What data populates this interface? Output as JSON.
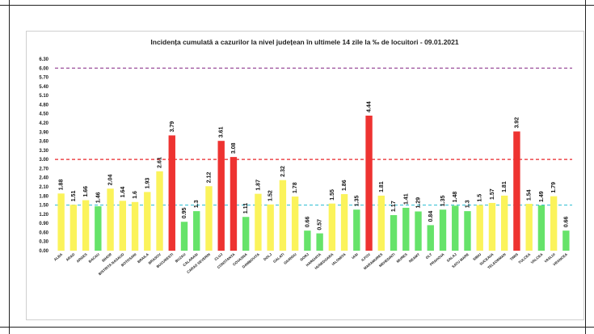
{
  "chart_data": {
    "type": "bar",
    "title": "Incidența cumulată a cazurilor la nivel județean în ultimele 14 zile la ‰ de locuitori - 09.01.2021",
    "xlabel": "",
    "ylabel": "",
    "ylim": [
      0,
      6.3
    ],
    "yticks": [
      "0.00",
      "0.30",
      "0.60",
      "0.90",
      "1.20",
      "1.50",
      "1.80",
      "2.10",
      "2.40",
      "2.70",
      "3.00",
      "3.30",
      "3.60",
      "3.90",
      "4.20",
      "4.50",
      "4.80",
      "5.10",
      "5.40",
      "5.70",
      "6.00",
      "6.30"
    ],
    "categories": [
      "ALBA",
      "ARAD",
      "ARGES",
      "BACAU",
      "BIHOR",
      "BISTRITA NASAUD",
      "BOTOSANI",
      "BRAILA",
      "BRASOV",
      "BUCURESTI",
      "BUZAU",
      "CALARASI",
      "CARAS SEVERIN",
      "CLUJ",
      "CONSTANTA",
      "COVASNA",
      "DAMBOVITA",
      "DOLJ",
      "GALATI",
      "GIURGIU",
      "GORJ",
      "HARGHITA",
      "HUNEDOARA",
      "IALOMITA",
      "IASI",
      "ILFOV",
      "MARAMURES",
      "MEHEDINTI",
      "MURES",
      "NEAMT",
      "OLT",
      "PRAHOVA",
      "SALAJ",
      "SATU MARE",
      "SIBIU",
      "SUCEAVA",
      "TELEORMAN",
      "TIMIS",
      "TULCEA",
      "VALCEA",
      "VASLUI",
      "VRANCEA"
    ],
    "values": [
      1.88,
      1.51,
      1.66,
      1.46,
      2.04,
      1.64,
      1.6,
      1.93,
      2.61,
      3.79,
      0.95,
      1.3,
      2.12,
      3.61,
      3.08,
      1.11,
      1.87,
      1.52,
      2.32,
      1.78,
      0.66,
      0.57,
      1.55,
      1.86,
      1.35,
      4.44,
      1.81,
      1.17,
      1.41,
      1.29,
      0.84,
      1.35,
      1.48,
      1.3,
      1.5,
      1.57,
      1.81,
      3.92,
      1.54,
      1.49,
      1.79,
      0.66
    ],
    "value_labels": [
      "1.88",
      "1.51",
      "1.66",
      "1.46",
      "2.04",
      "1.64",
      "1.6",
      "1.93",
      "2.61",
      "3.79",
      "0.95",
      "1.3",
      "2.12",
      "3.61",
      "3.08",
      "1.11",
      "1.87",
      "1.52",
      "2.32",
      "1.78",
      "0.66",
      "0.57",
      "1.55",
      "1.86",
      "1.35",
      "4.44",
      "1.81",
      "1.17",
      "1.41",
      "1.29",
      "0.84",
      "1.35",
      "1.48",
      "1.3",
      "1.5",
      "1.57",
      "1.81",
      "3.92",
      "1.54",
      "1.49",
      "1.79",
      "0.66"
    ],
    "thresholds": [
      {
        "value": 1.5,
        "color": "#3fc3d6",
        "style": "dashed"
      },
      {
        "value": 3.0,
        "color": "#e8262a",
        "style": "dashed"
      },
      {
        "value": 6.0,
        "color": "#9a4e9a",
        "style": "dashed"
      }
    ],
    "colors": {
      "green": "#66e36a",
      "yellow": "#fbf35b",
      "red": "#ee3331"
    },
    "grid": false,
    "legend": "none"
  }
}
